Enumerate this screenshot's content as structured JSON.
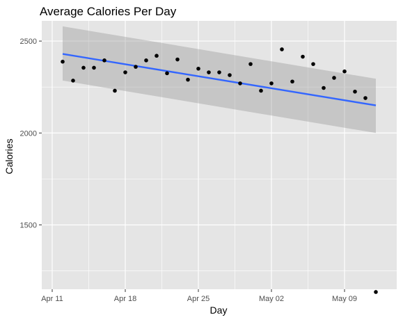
{
  "chart_data": {
    "type": "scatter",
    "title": "Average Calories Per Day",
    "xlabel": "Day",
    "ylabel": "Calories",
    "x_ticks": [
      "Apr 11",
      "Apr 18",
      "Apr 25",
      "May 02",
      "May 09"
    ],
    "y_ticks": [
      "1500",
      "2000",
      "2500"
    ],
    "xlim": [
      "2021-04-10",
      "2021-05-14"
    ],
    "ylim": [
      1150,
      2610
    ],
    "grid": true,
    "points": [
      {
        "x": "2021-04-12",
        "y": 2388
      },
      {
        "x": "2021-04-13",
        "y": 2285
      },
      {
        "x": "2021-04-14",
        "y": 2355
      },
      {
        "x": "2021-04-15",
        "y": 2355
      },
      {
        "x": "2021-04-16",
        "y": 2395
      },
      {
        "x": "2021-04-17",
        "y": 2230
      },
      {
        "x": "2021-04-18",
        "y": 2330
      },
      {
        "x": "2021-04-19",
        "y": 2360
      },
      {
        "x": "2021-04-20",
        "y": 2395
      },
      {
        "x": "2021-04-21",
        "y": 2420
      },
      {
        "x": "2021-04-22",
        "y": 2325
      },
      {
        "x": "2021-04-23",
        "y": 2400
      },
      {
        "x": "2021-04-24",
        "y": 2290
      },
      {
        "x": "2021-04-25",
        "y": 2350
      },
      {
        "x": "2021-04-26",
        "y": 2330
      },
      {
        "x": "2021-04-27",
        "y": 2330
      },
      {
        "x": "2021-04-28",
        "y": 2315
      },
      {
        "x": "2021-04-29",
        "y": 2270
      },
      {
        "x": "2021-04-30",
        "y": 2375
      },
      {
        "x": "2021-05-01",
        "y": 2230
      },
      {
        "x": "2021-05-02",
        "y": 2270
      },
      {
        "x": "2021-05-03",
        "y": 2455
      },
      {
        "x": "2021-05-04",
        "y": 2280
      },
      {
        "x": "2021-05-05",
        "y": 2415
      },
      {
        "x": "2021-05-06",
        "y": 2375
      },
      {
        "x": "2021-05-07",
        "y": 2245
      },
      {
        "x": "2021-05-08",
        "y": 2300
      },
      {
        "x": "2021-05-09",
        "y": 2335
      },
      {
        "x": "2021-05-10",
        "y": 2225
      },
      {
        "x": "2021-05-11",
        "y": 2190
      },
      {
        "x": "2021-05-12",
        "y": 1135
      }
    ],
    "trend_line": {
      "x_start": "2021-04-12",
      "y_start": 2430,
      "x_end": "2021-05-12",
      "y_end": 2150,
      "ci_upper_start": 2580,
      "ci_lower_start": 2285,
      "ci_upper_end": 2295,
      "ci_lower_end": 2000
    },
    "colors": {
      "panel_background": "#e5e5e5",
      "grid_major": "#ffffff",
      "point": "#000000",
      "trend_line": "#3366ff",
      "confidence_band": "#999999"
    }
  }
}
